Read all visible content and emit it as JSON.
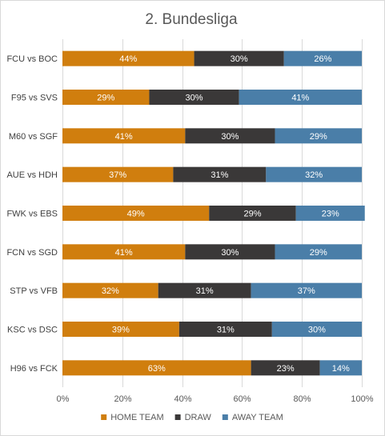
{
  "chart_data": {
    "type": "bar",
    "orientation": "horizontal",
    "stacked": "percent",
    "title": "2. Bundesliga",
    "categories": [
      "FCU vs BOC",
      "F95 vs SVS",
      "M60 vs SGF",
      "AUE vs HDH",
      "FWK vs EBS",
      "FCN vs SGD",
      "STP vs VFB",
      "KSC vs DSC",
      "H96 vs FCK"
    ],
    "series": [
      {
        "name": "HOME TEAM",
        "color": "#d07e0e",
        "values": [
          44,
          29,
          41,
          37,
          49,
          41,
          32,
          39,
          63
        ],
        "labels": [
          "44%",
          "29%",
          "41%",
          "37%",
          "49%",
          "41%",
          "32%",
          "39%",
          "63%"
        ]
      },
      {
        "name": "DRAW",
        "color": "#3a3838",
        "values": [
          30,
          30,
          30,
          31,
          29,
          30,
          31,
          31,
          23
        ],
        "labels": [
          "30%",
          "30%",
          "30%",
          "31%",
          "29%",
          "30%",
          "31%",
          "31%",
          "23%"
        ]
      },
      {
        "name": "AWAY TEAM",
        "color": "#4a7ea8",
        "values": [
          26,
          41,
          29,
          32,
          23,
          29,
          37,
          30,
          14
        ],
        "labels": [
          "26%",
          "41%",
          "29%",
          "32%",
          "23%",
          "29%",
          "37%",
          "30%",
          "14%"
        ]
      }
    ],
    "xlim": [
      0,
      100
    ],
    "x_ticks": [
      0,
      20,
      40,
      60,
      80,
      100
    ],
    "x_tick_labels": [
      "0%",
      "20%",
      "40%",
      "60%",
      "80%",
      "100%"
    ],
    "grid": true,
    "legend_position": "bottom"
  }
}
